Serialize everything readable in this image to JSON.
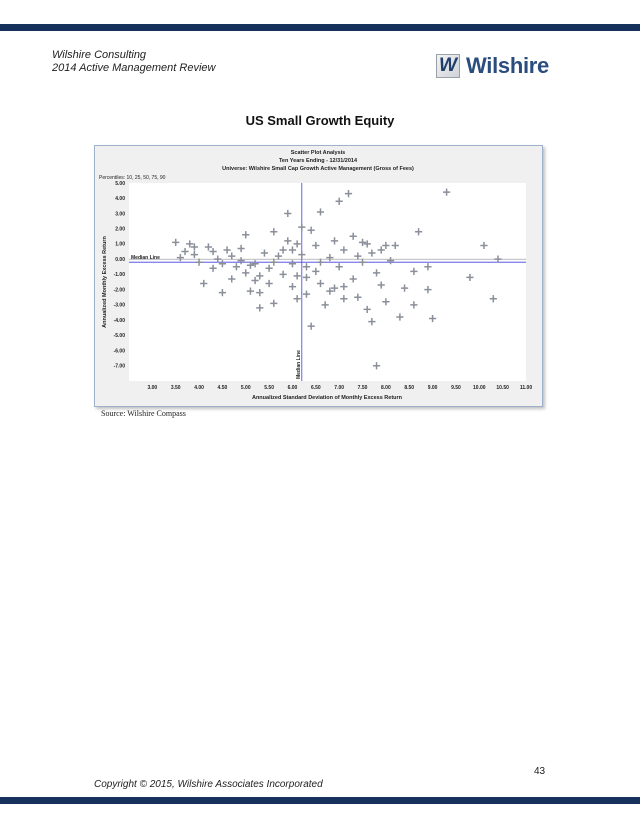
{
  "header": {
    "company": "Wilshire Consulting",
    "report": "2014 Active Management Review"
  },
  "logo": {
    "mark": "W",
    "text": "Wilshire"
  },
  "page_title": "US Small Growth Equity",
  "source": "Source: Wilshire Compass",
  "page_number": "43",
  "copyright": "Copyright © 2015, Wilshire Associates Incorporated",
  "colors": {
    "bars": "#16325c",
    "median_line": "#4040e0",
    "points": "#8a8f99"
  },
  "chart_data": {
    "type": "scatter",
    "title": "Scatter Plot Analysis",
    "subtitle": "Ten Years Ending - 12/31/2014",
    "universe": "Universe: Wilshire Small Cap Growth Active Management (Gross of Fees)",
    "percentiles_label": "Percentiles: 10, 25, 50, 75, 90",
    "xlabel": "Annualized Standard Deviation of Monthly Excess Return",
    "ylabel": "Annualized Monthly Excess Return",
    "xlim": [
      2.5,
      11.0
    ],
    "ylim": [
      -8.0,
      5.0
    ],
    "xticks": [
      "3.00",
      "3.50",
      "4.00",
      "4.50",
      "5.00",
      "5.50",
      "6.00",
      "6.50",
      "7.00",
      "7.50",
      "8.00",
      "8.50",
      "9.00",
      "9.50",
      "10.00",
      "10.50",
      "11.00"
    ],
    "yticks": [
      "5.00",
      "4.00",
      "3.00",
      "2.00",
      "1.00",
      "0.00",
      "-1.00",
      "-2.00",
      "-3.00",
      "-4.00",
      "-5.00",
      "-6.00",
      "-7.00"
    ],
    "median_x": 6.2,
    "median_y": -0.2,
    "median_y_label": "Median Line",
    "median_x_label": "Median Line",
    "grid": false,
    "points": [
      [
        3.5,
        1.1
      ],
      [
        3.6,
        0.1
      ],
      [
        3.8,
        1.0
      ],
      [
        3.9,
        0.8
      ],
      [
        4.0,
        -0.2
      ],
      [
        4.1,
        -1.6
      ],
      [
        4.2,
        0.8
      ],
      [
        4.3,
        0.5
      ],
      [
        4.5,
        -0.3
      ],
      [
        4.5,
        -2.2
      ],
      [
        4.6,
        0.6
      ],
      [
        4.7,
        0.2
      ],
      [
        4.8,
        -0.5
      ],
      [
        4.9,
        0.7
      ],
      [
        5.0,
        1.6
      ],
      [
        5.0,
        -0.9
      ],
      [
        5.1,
        -2.1
      ],
      [
        5.2,
        -0.3
      ],
      [
        5.3,
        -1.1
      ],
      [
        5.3,
        -2.2
      ],
      [
        5.3,
        -3.2
      ],
      [
        5.4,
        0.4
      ],
      [
        5.5,
        -0.6
      ],
      [
        5.5,
        -1.6
      ],
      [
        5.6,
        1.8
      ],
      [
        5.6,
        -2.9
      ],
      [
        5.7,
        0.2
      ],
      [
        5.8,
        -1.0
      ],
      [
        5.9,
        1.2
      ],
      [
        5.9,
        3.0
      ],
      [
        6.0,
        0.6
      ],
      [
        6.0,
        -0.3
      ],
      [
        6.0,
        -1.8
      ],
      [
        6.1,
        1.0
      ],
      [
        6.1,
        -2.6
      ],
      [
        6.2,
        0.3
      ],
      [
        6.2,
        2.1
      ],
      [
        6.3,
        -0.5
      ],
      [
        6.3,
        -1.2
      ],
      [
        6.3,
        -2.3
      ],
      [
        6.4,
        1.9
      ],
      [
        6.4,
        -4.4
      ],
      [
        6.5,
        0.9
      ],
      [
        6.5,
        -0.8
      ],
      [
        6.6,
        3.1
      ],
      [
        6.6,
        -1.6
      ],
      [
        6.7,
        -3.0
      ],
      [
        6.8,
        0.1
      ],
      [
        6.9,
        1.2
      ],
      [
        6.9,
        -1.9
      ],
      [
        7.0,
        -0.5
      ],
      [
        7.0,
        3.8
      ],
      [
        7.1,
        0.6
      ],
      [
        7.1,
        -2.6
      ],
      [
        7.2,
        4.3
      ],
      [
        7.3,
        -1.3
      ],
      [
        7.3,
        1.5
      ],
      [
        7.4,
        0.2
      ],
      [
        7.5,
        -0.2
      ],
      [
        7.5,
        1.1
      ],
      [
        7.6,
        -3.3
      ],
      [
        7.7,
        0.4
      ],
      [
        7.7,
        -4.1
      ],
      [
        7.8,
        -0.9
      ],
      [
        7.8,
        -7.0
      ],
      [
        7.9,
        -1.7
      ],
      [
        8.0,
        0.9
      ],
      [
        8.0,
        -2.8
      ],
      [
        8.1,
        -0.1
      ],
      [
        8.3,
        -3.8
      ],
      [
        8.4,
        -1.9
      ],
      [
        8.6,
        -0.8
      ],
      [
        8.6,
        -3.0
      ],
      [
        8.7,
        1.8
      ],
      [
        8.9,
        -2.0
      ],
      [
        8.9,
        -0.5
      ],
      [
        9.0,
        -3.9
      ],
      [
        9.3,
        4.4
      ],
      [
        9.8,
        -1.2
      ],
      [
        10.1,
        0.9
      ],
      [
        10.3,
        -2.6
      ],
      [
        10.4,
        0.0
      ],
      [
        3.9,
        0.3
      ],
      [
        4.4,
        0.0
      ],
      [
        4.7,
        -1.3
      ],
      [
        5.2,
        -1.4
      ],
      [
        5.6,
        -0.2
      ],
      [
        6.8,
        -2.1
      ],
      [
        7.4,
        -2.5
      ],
      [
        7.9,
        0.6
      ],
      [
        3.7,
        0.5
      ],
      [
        4.9,
        -0.1
      ],
      [
        5.8,
        0.6
      ],
      [
        6.1,
        -1.1
      ],
      [
        6.6,
        -0.2
      ],
      [
        7.1,
        -1.8
      ],
      [
        7.6,
        1.0
      ],
      [
        8.2,
        0.9
      ],
      [
        4.3,
        -0.6
      ],
      [
        5.1,
        -0.4
      ]
    ]
  }
}
